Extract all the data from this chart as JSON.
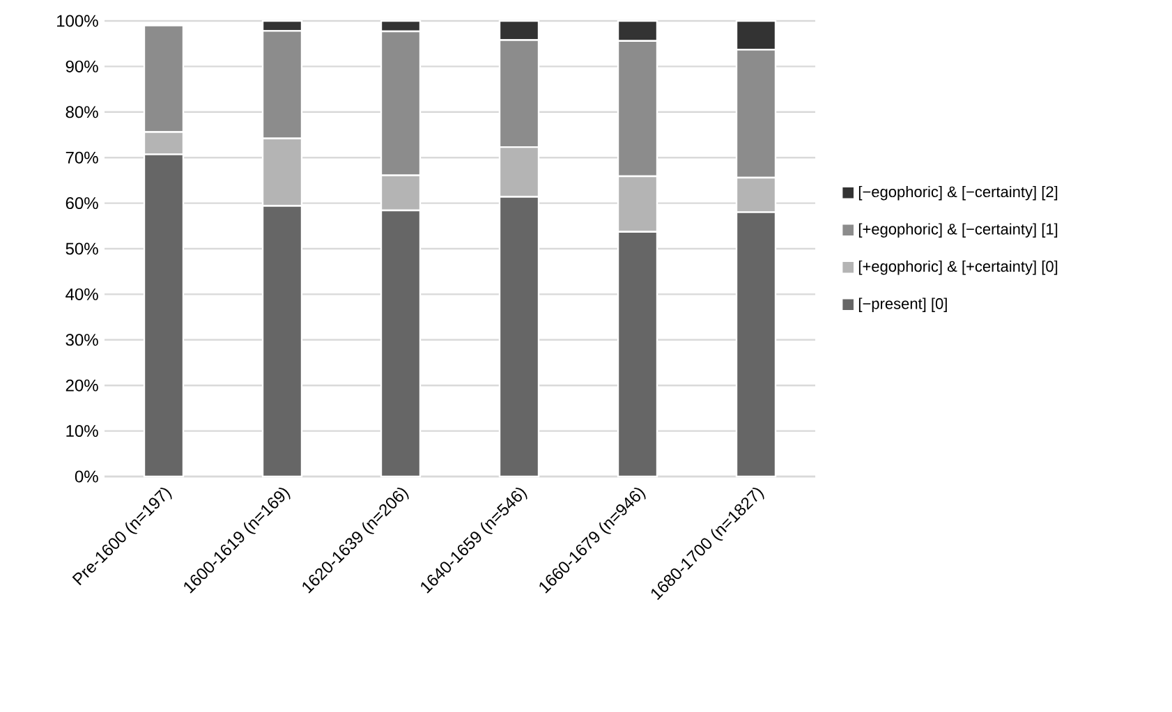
{
  "chart_data": {
    "type": "bar",
    "stacked": true,
    "categories": [
      "Pre-1600 (n=197)",
      "1600-1619 (n=169)",
      "1620-1639 (n=206)",
      "1640-1659 (n=546)",
      "1660-1679 (n=946)",
      "1680-1700 (n=1827)"
    ],
    "series": [
      {
        "name": "[−present] [0]",
        "color": "#666666",
        "values": [
          70.7,
          59.4,
          58.4,
          61.4,
          53.7,
          58.0
        ]
      },
      {
        "name": "[+egophoric] & [+certainty] [0]",
        "color": "#b4b4b4",
        "values": [
          4.9,
          14.8,
          7.7,
          10.9,
          12.2,
          7.6
        ]
      },
      {
        "name": "[+egophoric] & [−certainty] [1]",
        "color": "#8c8c8c",
        "values": [
          23.4,
          23.6,
          31.6,
          23.5,
          29.7,
          28.1
        ]
      },
      {
        "name": "[−egophoric] & [−certainty] [2]",
        "color": "#333333",
        "values": [
          0,
          2.2,
          2.3,
          4.2,
          4.4,
          6.3
        ]
      }
    ],
    "ylim": [
      0,
      100
    ],
    "yticks": [
      {
        "value": 0,
        "label": "0%"
      },
      {
        "value": 10,
        "label": "10%"
      },
      {
        "value": 20,
        "label": "20%"
      },
      {
        "value": 30,
        "label": "30%"
      },
      {
        "value": 40,
        "label": "40%"
      },
      {
        "value": 50,
        "label": "50%"
      },
      {
        "value": 60,
        "label": "60%"
      },
      {
        "value": 70,
        "label": "70%"
      },
      {
        "value": 80,
        "label": "80%"
      },
      {
        "value": 90,
        "label": "90%"
      },
      {
        "value": 100,
        "label": "100%"
      }
    ],
    "grid": "y",
    "legend": "right"
  }
}
